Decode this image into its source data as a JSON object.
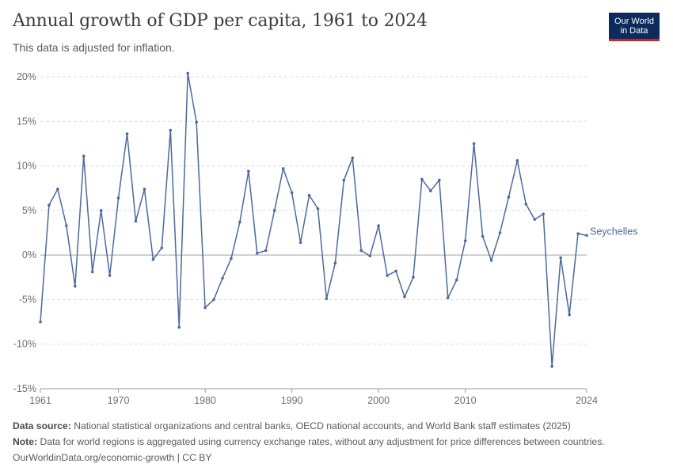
{
  "header": {
    "title": "Annual growth of GDP per capita, 1961 to 2024",
    "subtitle": "This data is adjusted for inflation.",
    "logo_line1": "Our World",
    "logo_line2": "in Data"
  },
  "footer": {
    "source_label": "Data source:",
    "source_text": "National statistical organizations and central banks, OECD national accounts, and World Bank staff estimates (2025)",
    "note_label": "Note:",
    "note_text": "Data for world regions is aggregated using currency exchange rates, without any adjustment for price differences between countries.",
    "url": "OurWorldinData.org/economic-growth | CC BY"
  },
  "colors": {
    "series": "#4c6a9c",
    "grid": "#dddddd",
    "zero_line": "#a1a1a1",
    "axis_text": "#6e6e6e",
    "logo_bg": "#0d2a5c",
    "logo_accent": "#ce261e"
  },
  "chart_data": {
    "type": "line",
    "title": "Annual growth of GDP per capita, 1961 to 2024",
    "subtitle": "This data is adjusted for inflation.",
    "xlabel": "",
    "ylabel": "",
    "xlim": [
      1961,
      2024
    ],
    "ylim": [
      -15,
      20
    ],
    "x_ticks": [
      1961,
      1970,
      1980,
      1990,
      2000,
      2010,
      2024
    ],
    "y_ticks": [
      -15,
      -10,
      -5,
      0,
      5,
      10,
      15,
      20
    ],
    "y_tick_labels": [
      "-15%",
      "-10%",
      "-5%",
      "0%",
      "5%",
      "10%",
      "15%",
      "20%"
    ],
    "grid": "horizontal dashed",
    "legend": "inline label at line end",
    "series": [
      {
        "name": "Seychelles",
        "x": [
          1961,
          1962,
          1963,
          1964,
          1965,
          1966,
          1967,
          1968,
          1969,
          1970,
          1971,
          1972,
          1973,
          1974,
          1975,
          1976,
          1977,
          1978,
          1979,
          1980,
          1981,
          1982,
          1983,
          1984,
          1985,
          1986,
          1987,
          1988,
          1989,
          1990,
          1991,
          1992,
          1993,
          1994,
          1995,
          1996,
          1997,
          1998,
          1999,
          2000,
          2001,
          2002,
          2003,
          2004,
          2005,
          2006,
          2007,
          2008,
          2009,
          2010,
          2011,
          2012,
          2013,
          2014,
          2015,
          2016,
          2017,
          2018,
          2019,
          2020,
          2021,
          2022,
          2023,
          2024
        ],
        "values": [
          -7.5,
          5.6,
          7.4,
          3.3,
          -3.5,
          11.1,
          -1.9,
          5.0,
          -2.3,
          6.4,
          13.6,
          3.8,
          7.4,
          -0.5,
          0.8,
          14.0,
          -8.1,
          20.4,
          14.9,
          -5.9,
          -5.0,
          -2.6,
          -0.4,
          3.7,
          9.4,
          0.2,
          0.5,
          5.0,
          9.7,
          7.0,
          1.4,
          6.7,
          5.2,
          -4.9,
          -0.9,
          8.4,
          10.9,
          0.5,
          -0.1,
          3.3,
          -2.3,
          -1.8,
          -4.7,
          -2.5,
          8.5,
          7.2,
          8.4,
          -4.8,
          -2.8,
          1.6,
          12.5,
          2.1,
          -0.6,
          2.5,
          6.5,
          10.6,
          5.7,
          4.0,
          4.6,
          -12.5,
          -0.3,
          -6.7,
          2.4,
          2.2
        ]
      }
    ]
  }
}
